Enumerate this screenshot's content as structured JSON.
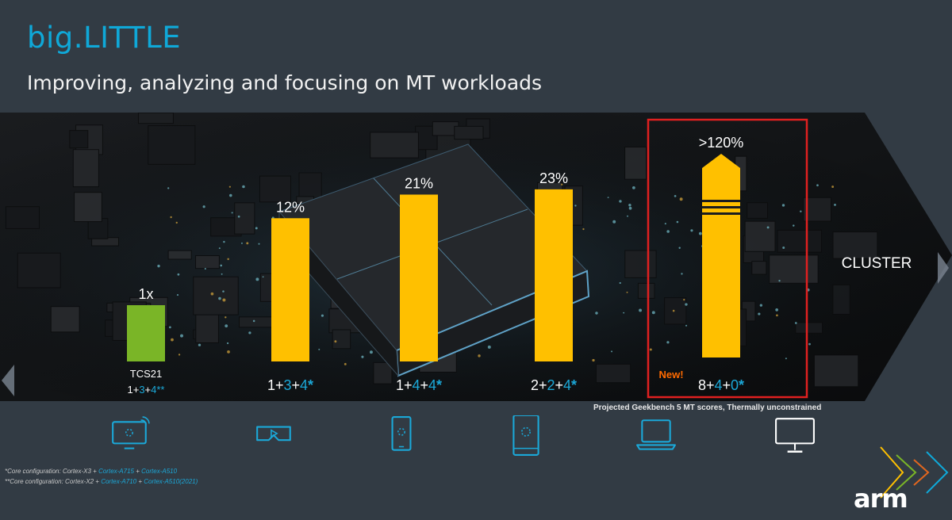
{
  "header": {
    "title": "big.LITTLE",
    "subtitle": "Improving, analyzing and focusing on MT workloads"
  },
  "banner": {
    "right_label": "CLUSTER"
  },
  "chart_data": {
    "type": "bar",
    "title": "",
    "categories": [
      "TCS21",
      "1+3+4*",
      "1+4+4*",
      "2+2+4*",
      "8+4+0*"
    ],
    "values": [
      1.0,
      1.12,
      1.21,
      1.23,
      2.2
    ],
    "value_labels": [
      "1x",
      "12%",
      "21%",
      "23%",
      ">120%"
    ],
    "bar_colors": [
      "#7ab527",
      "#ffc000",
      "#ffc000",
      "#ffc000",
      "#ffc000"
    ],
    "highlight": {
      "index": 4,
      "border_color": "#e02020",
      "tag": "New!"
    },
    "config_parts": [
      [
        {
          "t": "1",
          "c": "#ffffff"
        },
        {
          "t": "+",
          "c": "#ffffff"
        },
        {
          "t": "3",
          "c": "#1ba8d8"
        },
        {
          "t": "+",
          "c": "#ffffff"
        },
        {
          "t": "4",
          "c": "#1ba8d8"
        },
        {
          "t": "**",
          "c": "#1ba8d8"
        }
      ],
      [
        {
          "t": "1",
          "c": "#ffffff"
        },
        {
          "t": "+",
          "c": "#ffffff"
        },
        {
          "t": "3",
          "c": "#1ba8d8"
        },
        {
          "t": "+",
          "c": "#ffffff"
        },
        {
          "t": "4",
          "c": "#1ba8d8"
        },
        {
          "t": "*",
          "c": "#1ba8d8"
        }
      ],
      [
        {
          "t": "1",
          "c": "#ffffff"
        },
        {
          "t": "+",
          "c": "#ffffff"
        },
        {
          "t": "4",
          "c": "#1ba8d8"
        },
        {
          "t": "+",
          "c": "#ffffff"
        },
        {
          "t": "4",
          "c": "#1ba8d8"
        },
        {
          "t": "*",
          "c": "#1ba8d8"
        }
      ],
      [
        {
          "t": "2",
          "c": "#ffffff"
        },
        {
          "t": "+",
          "c": "#ffffff"
        },
        {
          "t": "2",
          "c": "#1ba8d8"
        },
        {
          "t": "+",
          "c": "#ffffff"
        },
        {
          "t": "4",
          "c": "#1ba8d8"
        },
        {
          "t": "*",
          "c": "#1ba8d8"
        }
      ],
      [
        {
          "t": "8",
          "c": "#ffffff"
        },
        {
          "t": "+",
          "c": "#ffffff"
        },
        {
          "t": "4",
          "c": "#1ba8d8"
        },
        {
          "t": "+",
          "c": "#ffffff"
        },
        {
          "t": "0",
          "c": "#1ba8d8"
        },
        {
          "t": "*",
          "c": "#1ba8d8"
        }
      ]
    ],
    "footnote": "Projected Geekbench 5 MT scores, Thermally unconstrained"
  },
  "devices": [
    {
      "icon": "smart-tv-icon"
    },
    {
      "icon": "vr-headset-icon"
    },
    {
      "icon": "smartphone-icon"
    },
    {
      "icon": "tablet-icon"
    },
    {
      "icon": "laptop-icon"
    },
    {
      "icon": "desktop-monitor-icon"
    }
  ],
  "footnotes": [
    {
      "prefix": "*Core configuration: ",
      "parts": [
        {
          "t": "Cortex-X3",
          "c": "#c9c9c9"
        },
        {
          "t": " + ",
          "c": "#c9c9c9"
        },
        {
          "t": "Cortex-A715",
          "c": "#1ba8d8"
        },
        {
          "t": " + ",
          "c": "#c9c9c9"
        },
        {
          "t": "Cortex-A510",
          "c": "#1ba8d8"
        }
      ]
    },
    {
      "prefix": "**Core configuration: ",
      "parts": [
        {
          "t": "Cortex-X2",
          "c": "#c9c9c9"
        },
        {
          "t": " + ",
          "c": "#c9c9c9"
        },
        {
          "t": "Cortex-A710",
          "c": "#1ba8d8"
        },
        {
          "t": " + ",
          "c": "#c9c9c9"
        },
        {
          "t": "Cortex-A510(2021)",
          "c": "#1ba8d8"
        }
      ]
    }
  ],
  "logo": {
    "text": "arm"
  },
  "colors": {
    "accent": "#0fa8d8",
    "background": "#323b44",
    "gold": "#ffc000",
    "green": "#7ab527"
  }
}
